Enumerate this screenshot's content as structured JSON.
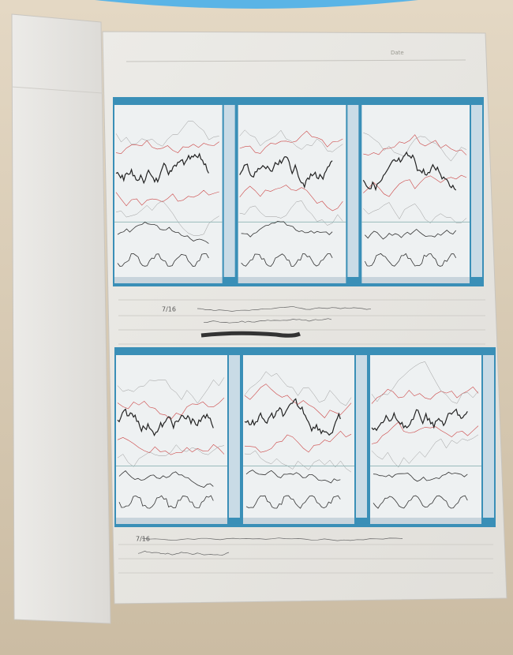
{
  "header": {
    "date_label": "Date"
  },
  "top_notes": {
    "date": "7/16"
  },
  "bottom_notes": {
    "date": "7/16"
  }
}
